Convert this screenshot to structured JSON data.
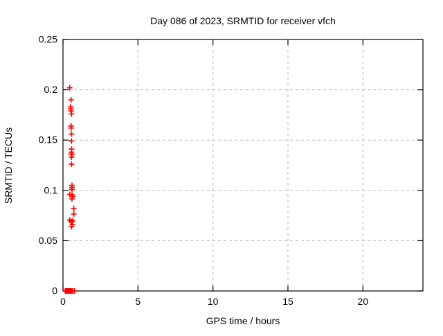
{
  "chart_data": {
    "type": "scatter",
    "title": "Day 086 of 2023, SRMTID for receiver vfch",
    "xlabel": "GPS time / hours",
    "ylabel": "SRMTID / TECUs",
    "xlim": [
      0,
      24
    ],
    "ylim": [
      0,
      0.25
    ],
    "xticks": [
      {
        "value": 0,
        "label": "0"
      },
      {
        "value": 5,
        "label": "5"
      },
      {
        "value": 10,
        "label": "10"
      },
      {
        "value": 15,
        "label": "15"
      },
      {
        "value": 20,
        "label": "20"
      }
    ],
    "yticks": [
      {
        "value": 0,
        "label": "0"
      },
      {
        "value": 0.05,
        "label": "0.05"
      },
      {
        "value": 0.1,
        "label": "0.1"
      },
      {
        "value": 0.15,
        "label": "0.15"
      },
      {
        "value": 0.2,
        "label": "0.2"
      },
      {
        "value": 0.25,
        "label": "0.25"
      }
    ],
    "grid": {
      "show": true,
      "color": "#b4b4b4",
      "dash": "4 4"
    },
    "frame_color": "#000000",
    "legend": null,
    "series": [
      {
        "name": "SRMTID",
        "marker": "plus",
        "color": "#ff0000",
        "points": [
          [
            0.45,
            0.202
          ],
          [
            0.54,
            0.19
          ],
          [
            0.51,
            0.183
          ],
          [
            0.51,
            0.181
          ],
          [
            0.54,
            0.179
          ],
          [
            0.57,
            0.176
          ],
          [
            0.54,
            0.164
          ],
          [
            0.54,
            0.162
          ],
          [
            0.57,
            0.156
          ],
          [
            0.57,
            0.149
          ],
          [
            0.57,
            0.141
          ],
          [
            0.57,
            0.138
          ],
          [
            0.54,
            0.136
          ],
          [
            0.6,
            0.136
          ],
          [
            0.57,
            0.133
          ],
          [
            0.57,
            0.126
          ],
          [
            0.6,
            0.105
          ],
          [
            0.6,
            0.103
          ],
          [
            0.6,
            0.101
          ],
          [
            0.45,
            0.096
          ],
          [
            0.6,
            0.0955
          ],
          [
            0.66,
            0.094
          ],
          [
            0.6,
            0.0915
          ],
          [
            0.72,
            0.082
          ],
          [
            0.72,
            0.0765
          ],
          [
            0.45,
            0.0705
          ],
          [
            0.63,
            0.07
          ],
          [
            0.54,
            0.069
          ],
          [
            0.57,
            0.0685
          ],
          [
            0.63,
            0.066
          ],
          [
            0.57,
            0.064
          ],
          [
            0.15,
            0
          ],
          [
            0.2,
            0
          ],
          [
            0.25,
            0
          ],
          [
            0.3,
            0
          ],
          [
            0.35,
            0
          ],
          [
            0.4,
            0
          ],
          [
            0.45,
            0
          ],
          [
            0.5,
            0
          ],
          [
            0.55,
            0
          ],
          [
            0.6,
            0
          ],
          [
            0.65,
            0
          ],
          [
            0.77,
            0
          ]
        ]
      }
    ]
  }
}
